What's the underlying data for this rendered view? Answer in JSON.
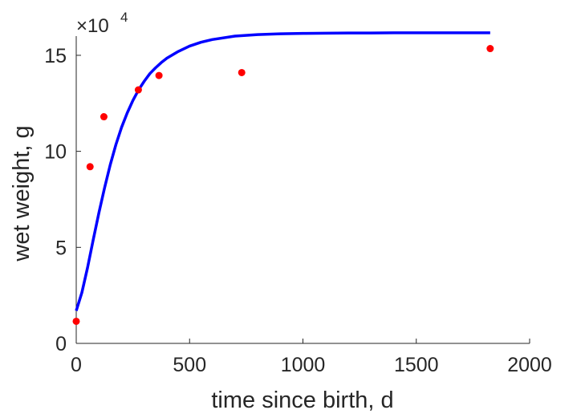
{
  "chart_data": {
    "type": "scatter",
    "title": "",
    "xlabel": "time since birth, d",
    "ylabel": "wet weight, g",
    "xlim": [
      0,
      2000
    ],
    "ylim": [
      0,
      160000
    ],
    "x_ticks": [
      0,
      500,
      1000,
      1500,
      2000
    ],
    "x_tick_labels": [
      "0",
      "500",
      "1000",
      "1500",
      "2000"
    ],
    "y_ticks": [
      0,
      50000,
      100000,
      150000
    ],
    "y_tick_labels": [
      "0",
      "5",
      "10",
      "15"
    ],
    "y_exponent_label": "×10",
    "y_exponent_power": "4",
    "grid": false,
    "legend": "none",
    "series": [
      {
        "kind": "scatter",
        "color": "#ff0000",
        "x": [
          0,
          61,
          122,
          274,
          365,
          730,
          1826
        ],
        "y": [
          11500,
          92000,
          118000,
          132000,
          139500,
          141000,
          153500
        ]
      },
      {
        "kind": "line",
        "color": "#0000ff",
        "x": [
          0,
          25,
          50,
          75,
          100,
          125,
          150,
          175,
          200,
          225,
          250,
          275,
          300,
          325,
          350,
          375,
          400,
          450,
          500,
          550,
          600,
          700,
          800,
          900,
          1000,
          1100,
          1200,
          1300,
          1400,
          1500,
          1600,
          1700,
          1826
        ],
        "y": [
          17000,
          26500,
          39500,
          54000,
          68000,
          81000,
          93000,
          103500,
          112500,
          120000,
          126500,
          132000,
          136500,
          140500,
          143500,
          146200,
          148500,
          152000,
          154800,
          156800,
          158200,
          160000,
          160800,
          161200,
          161400,
          161500,
          161600,
          161600,
          161700,
          161700,
          161700,
          161700,
          161700
        ]
      }
    ]
  }
}
